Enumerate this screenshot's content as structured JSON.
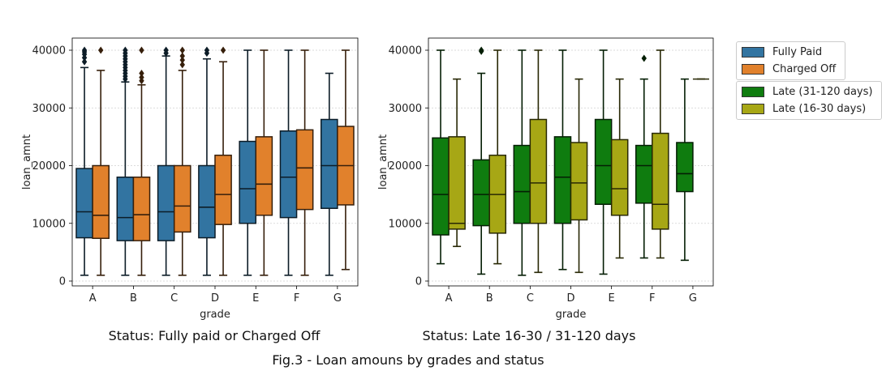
{
  "figure": {
    "title": "Fig.3 - Loan amouns by grades and status",
    "captions": [
      "Status: Fully paid or Charged Off",
      "Status: Late 16-30 / 31-120 days"
    ]
  },
  "legends": {
    "status": [
      {
        "label": "Fully Paid",
        "color": "#3274a1"
      },
      {
        "label": "Charged Off",
        "color": "#e1812c"
      }
    ],
    "late": [
      {
        "label": "Late (31-120 days)",
        "color": "#0f7c0f"
      },
      {
        "label": "Late (16-30 days)",
        "color": "#a7a715"
      }
    ]
  },
  "chart_data": [
    {
      "type": "box",
      "xlabel": "grade",
      "ylabel": "loan_amnt",
      "ylim": [
        0,
        42000
      ],
      "yticks": [
        0,
        10000,
        20000,
        30000,
        40000
      ],
      "grid": "horizontal dotted",
      "categories": [
        "A",
        "B",
        "C",
        "D",
        "E",
        "F",
        "G"
      ],
      "series": [
        {
          "name": "Fully Paid",
          "color": "#3274a1",
          "boxes": [
            {
              "min": 1000,
              "q1": 7500,
              "median": 12000,
              "q3": 19500,
              "max": 37000,
              "outliers": [
                38000,
                38700,
                39300,
                39700,
                40000
              ]
            },
            {
              "min": 1000,
              "q1": 7000,
              "median": 11000,
              "q3": 18000,
              "max": 34500,
              "outliers": [
                35000,
                35500,
                36000,
                36500,
                37000,
                37500,
                38000,
                38500,
                39000,
                39500,
                40000
              ]
            },
            {
              "min": 1000,
              "q1": 7000,
              "median": 12000,
              "q3": 20000,
              "max": 39000,
              "outliers": [
                39500,
                40000
              ]
            },
            {
              "min": 1000,
              "q1": 7500,
              "median": 12800,
              "q3": 20000,
              "max": 38500,
              "outliers": [
                39500,
                40000
              ]
            },
            {
              "min": 1000,
              "q1": 10000,
              "median": 16000,
              "q3": 24200,
              "max": 40000,
              "outliers": []
            },
            {
              "min": 1000,
              "q1": 11000,
              "median": 18000,
              "q3": 26000,
              "max": 40000,
              "outliers": []
            },
            {
              "min": 1000,
              "q1": 12600,
              "median": 20000,
              "q3": 28000,
              "max": 36000,
              "outliers": []
            }
          ]
        },
        {
          "name": "Charged Off",
          "color": "#e1812c",
          "boxes": [
            {
              "min": 1000,
              "q1": 7400,
              "median": 11400,
              "q3": 20000,
              "max": 36500,
              "outliers": [
                40000
              ]
            },
            {
              "min": 1000,
              "q1": 7000,
              "median": 11500,
              "q3": 18000,
              "max": 34000,
              "outliers": [
                34700,
                35300,
                36000,
                40000
              ]
            },
            {
              "min": 1000,
              "q1": 8500,
              "median": 13000,
              "q3": 20000,
              "max": 36500,
              "outliers": [
                37500,
                38300,
                39000,
                40000
              ]
            },
            {
              "min": 1000,
              "q1": 9800,
              "median": 15000,
              "q3": 21800,
              "max": 38000,
              "outliers": [
                40000
              ]
            },
            {
              "min": 1000,
              "q1": 11400,
              "median": 16800,
              "q3": 25000,
              "max": 40000,
              "outliers": []
            },
            {
              "min": 1000,
              "q1": 12400,
              "median": 19600,
              "q3": 26200,
              "max": 40000,
              "outliers": []
            },
            {
              "min": 2000,
              "q1": 13200,
              "median": 20000,
              "q3": 26800,
              "max": 40000,
              "outliers": []
            }
          ]
        }
      ]
    },
    {
      "type": "box",
      "xlabel": "grade",
      "ylabel": "loan_amnt",
      "ylim": [
        0,
        42000
      ],
      "yticks": [
        0,
        10000,
        20000,
        30000,
        40000
      ],
      "grid": "horizontal dotted",
      "categories": [
        "A",
        "B",
        "C",
        "D",
        "E",
        "F",
        "G"
      ],
      "series": [
        {
          "name": "Late (31-120 days)",
          "color": "#0f7c0f",
          "boxes": [
            {
              "min": 3000,
              "q1": 8000,
              "median": 15000,
              "q3": 24800,
              "max": 40000,
              "outliers": []
            },
            {
              "min": 1200,
              "q1": 9600,
              "median": 15000,
              "q3": 21000,
              "max": 36000,
              "outliers": [
                39800,
                40000
              ]
            },
            {
              "min": 1000,
              "q1": 10000,
              "median": 15500,
              "q3": 23500,
              "max": 40000,
              "outliers": []
            },
            {
              "min": 2000,
              "q1": 10000,
              "median": 18000,
              "q3": 25000,
              "max": 40000,
              "outliers": []
            },
            {
              "min": 1200,
              "q1": 13300,
              "median": 20000,
              "q3": 28000,
              "max": 40000,
              "outliers": []
            },
            {
              "min": 4000,
              "q1": 13500,
              "median": 20000,
              "q3": 23500,
              "max": 35000,
              "outliers": [
                38600
              ]
            },
            {
              "min": 3600,
              "q1": 15500,
              "median": 18600,
              "q3": 24000,
              "max": 35000,
              "outliers": []
            }
          ]
        },
        {
          "name": "Late (16-30 days)",
          "color": "#a7a715",
          "boxes": [
            {
              "min": 6000,
              "q1": 9000,
              "median": 10000,
              "q3": 25000,
              "max": 35000,
              "outliers": []
            },
            {
              "min": 3000,
              "q1": 8300,
              "median": 15000,
              "q3": 21800,
              "max": 40000,
              "outliers": []
            },
            {
              "min": 1500,
              "q1": 10000,
              "median": 17000,
              "q3": 28000,
              "max": 40000,
              "outliers": []
            },
            {
              "min": 1500,
              "q1": 10600,
              "median": 17000,
              "q3": 24000,
              "max": 35000,
              "outliers": []
            },
            {
              "min": 4000,
              "q1": 11400,
              "median": 16000,
              "q3": 24500,
              "max": 35000,
              "outliers": []
            },
            {
              "min": 4000,
              "q1": 9000,
              "median": 13300,
              "q3": 25600,
              "max": 40000,
              "outliers": []
            },
            {
              "min": 35000,
              "q1": 35000,
              "median": 35000,
              "q3": 35000,
              "max": 35000,
              "outliers": []
            }
          ]
        }
      ]
    }
  ]
}
